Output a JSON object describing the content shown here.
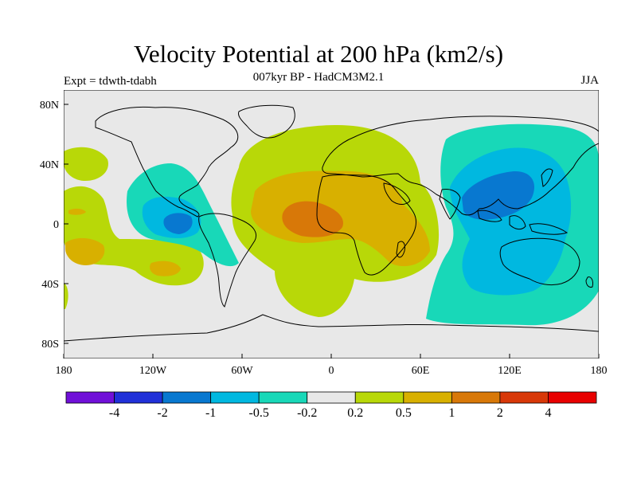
{
  "title": "Velocity Potential at 200 hPa (km2/s)",
  "subtitle": "007kyr BP - HadCM3M2.1",
  "left_label": "Expt = tdwth-tdabh",
  "right_label": "JJA",
  "lat_labels": [
    "80N",
    "40N",
    "0",
    "40S",
    "80S"
  ],
  "lon_labels": [
    "180",
    "120W",
    "60W",
    "0",
    "60E",
    "120E",
    "180"
  ],
  "colorbar": {
    "colors": [
      "#7010d8",
      "#2030d8",
      "#0878d0",
      "#00b8e0",
      "#18d8b8",
      "#e8e8e8",
      "#b8d808",
      "#d8b000",
      "#d87808",
      "#d83808",
      "#e80000"
    ],
    "labels": [
      "-4",
      "-2",
      "-1",
      "-0.5",
      "-0.2",
      "0.2",
      "0.5",
      "1",
      "2",
      "4"
    ]
  },
  "colors": {
    "ocean_bg": "#e8e8e8",
    "coast": "#000000"
  }
}
